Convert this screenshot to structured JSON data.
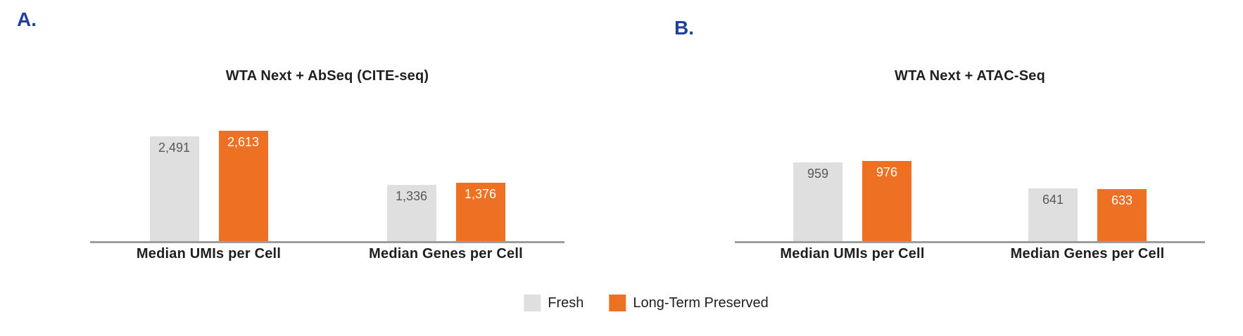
{
  "colors": {
    "fresh_gray": "#dfdfdf",
    "preserved_orange": "#ee7023",
    "axis_gray": "#9e9e9e",
    "gray_bar_value_text": "#595959",
    "orange_bar_value_text": "#ffffff",
    "panel_letter_blue": "#21409A",
    "chart_text": "#1f1f1f"
  },
  "legend": {
    "items": [
      {
        "label": "Fresh",
        "color": "#dfdfdf"
      },
      {
        "label": "Long-Term Preserved",
        "color": "#ee7023"
      }
    ]
  },
  "chart_data": [
    {
      "type": "bar",
      "panel_label": "A.",
      "title": "WTA Next + AbSeq (CITE-seq)",
      "categories": [
        "Median UMIs per Cell",
        "Median Genes per Cell"
      ],
      "series": [
        {
          "name": "Fresh",
          "color": "#dfdfdf",
          "values": [
            2491,
            1336
          ],
          "labels": [
            "2,491",
            "1,336"
          ],
          "label_color": "#595959"
        },
        {
          "name": "Long-Term Preserved",
          "color": "#ee7023",
          "values": [
            2613,
            1376
          ],
          "labels": [
            "2,613",
            "1,376"
          ],
          "label_color": "#ffffff"
        }
      ],
      "ylim": [
        0,
        3300
      ],
      "grid": false,
      "value_labels_position": "inside-top",
      "legend_position": "bottom-shared"
    },
    {
      "type": "bar",
      "panel_label": "B.",
      "title": "WTA Next + ATAC-Seq",
      "categories": [
        "Median UMIs per Cell",
        "Median Genes per Cell"
      ],
      "series": [
        {
          "name": "Fresh",
          "color": "#dfdfdf",
          "values": [
            959,
            641
          ],
          "labels": [
            "959",
            "641"
          ],
          "label_color": "#595959"
        },
        {
          "name": "Long-Term Preserved",
          "color": "#ee7023",
          "values": [
            976,
            633
          ],
          "labels": [
            "976",
            "633"
          ],
          "label_color": "#ffffff"
        }
      ],
      "ylim": [
        0,
        1690
      ],
      "grid": false,
      "value_labels_position": "inside-top",
      "legend_position": "bottom-shared"
    }
  ]
}
